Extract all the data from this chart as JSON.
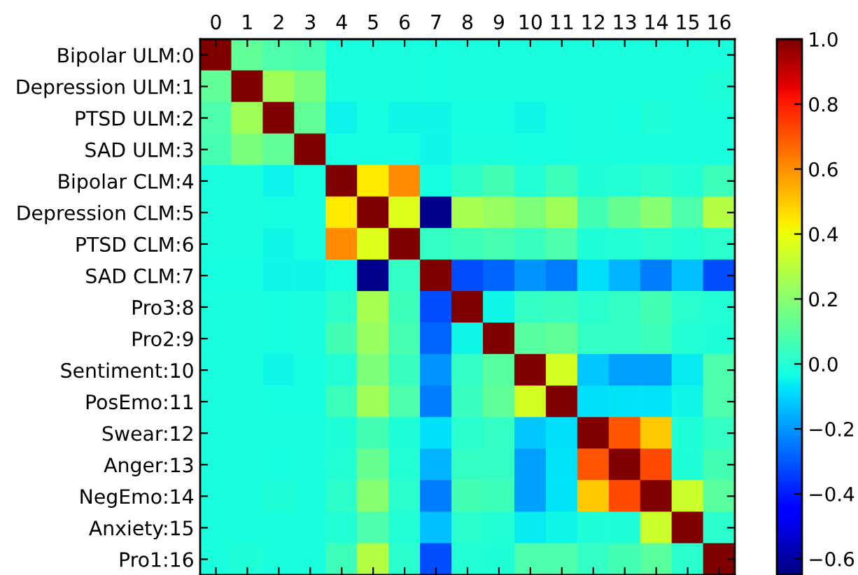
{
  "chart_data": {
    "type": "heatmap",
    "categories": [
      "0",
      "1",
      "2",
      "3",
      "4",
      "5",
      "6",
      "7",
      "8",
      "9",
      "10",
      "11",
      "12",
      "13",
      "14",
      "15",
      "16"
    ],
    "y_categories": [
      "Bipolar ULM:0",
      "Depression ULM:1",
      "PTSD ULM:2",
      "SAD ULM:3",
      "Bipolar CLM:4",
      "Depression CLM:5",
      "PTSD CLM:6",
      "SAD CLM:7",
      "Pro3:8",
      "Pro2:9",
      "Sentiment:10",
      "PosEmo:11",
      "Swear:12",
      "Anger:13",
      "NegEmo:14",
      "Anxiety:15",
      "Pro1:16"
    ],
    "cells": [
      [
        1.0,
        0.12,
        0.08,
        0.07,
        -0.02,
        -0.02,
        -0.02,
        -0.03,
        -0.02,
        -0.02,
        -0.02,
        -0.02,
        -0.02,
        -0.02,
        -0.02,
        -0.02,
        -0.02
      ],
      [
        0.12,
        1.0,
        0.25,
        0.17,
        -0.02,
        -0.02,
        -0.02,
        -0.03,
        -0.02,
        -0.02,
        -0.02,
        -0.02,
        -0.02,
        -0.02,
        -0.02,
        -0.02,
        -0.01
      ],
      [
        0.08,
        0.25,
        1.0,
        0.12,
        -0.05,
        -0.03,
        -0.04,
        -0.04,
        -0.03,
        -0.03,
        -0.04,
        -0.03,
        -0.02,
        -0.03,
        -0.01,
        -0.02,
        -0.02
      ],
      [
        0.07,
        0.17,
        0.12,
        1.0,
        -0.03,
        -0.03,
        -0.03,
        -0.04,
        -0.02,
        -0.02,
        -0.03,
        -0.03,
        -0.02,
        -0.02,
        -0.02,
        -0.02,
        -0.02
      ],
      [
        -0.02,
        -0.02,
        -0.05,
        -0.03,
        1.0,
        0.44,
        0.61,
        -0.03,
        0.02,
        0.06,
        0.0,
        0.05,
        -0.01,
        0.0,
        0.02,
        0.0,
        0.05
      ],
      [
        -0.02,
        -0.02,
        -0.03,
        -0.03,
        0.44,
        1.0,
        0.37,
        -0.63,
        0.26,
        0.23,
        0.18,
        0.25,
        0.06,
        0.13,
        0.2,
        0.08,
        0.29
      ],
      [
        -0.02,
        -0.02,
        -0.04,
        -0.03,
        0.61,
        0.37,
        1.0,
        0.03,
        0.05,
        0.07,
        0.04,
        0.08,
        -0.01,
        0.0,
        0.01,
        0.0,
        0.01
      ],
      [
        -0.03,
        -0.03,
        -0.04,
        -0.04,
        -0.03,
        -0.63,
        0.03,
        1.0,
        -0.32,
        -0.28,
        -0.2,
        -0.24,
        -0.08,
        -0.15,
        -0.24,
        -0.13,
        -0.32
      ],
      [
        -0.02,
        -0.02,
        -0.03,
        -0.02,
        0.02,
        0.26,
        0.05,
        -0.32,
        1.0,
        -0.04,
        0.03,
        0.04,
        0.01,
        0.03,
        0.06,
        0.01,
        0.0
      ],
      [
        -0.02,
        -0.02,
        -0.03,
        -0.02,
        0.06,
        0.23,
        0.07,
        -0.28,
        -0.04,
        1.0,
        0.1,
        0.12,
        0.03,
        0.03,
        0.05,
        0.0,
        -0.01
      ],
      [
        -0.02,
        -0.02,
        -0.04,
        -0.03,
        0.0,
        0.18,
        0.04,
        -0.2,
        0.03,
        0.1,
        1.0,
        0.35,
        -0.12,
        -0.18,
        -0.18,
        -0.06,
        0.08
      ],
      [
        -0.02,
        -0.02,
        -0.03,
        -0.03,
        0.05,
        0.25,
        0.08,
        -0.24,
        0.04,
        0.12,
        0.35,
        1.0,
        -0.08,
        -0.07,
        -0.07,
        -0.04,
        0.08
      ],
      [
        -0.02,
        -0.02,
        -0.02,
        -0.02,
        -0.01,
        0.06,
        -0.01,
        -0.08,
        0.01,
        0.03,
        -0.12,
        -0.08,
        1.0,
        0.7,
        0.5,
        -0.01,
        0.03
      ],
      [
        -0.02,
        -0.02,
        -0.03,
        -0.02,
        0.0,
        0.13,
        0.0,
        -0.15,
        0.03,
        0.03,
        -0.18,
        -0.07,
        0.7,
        1.0,
        0.72,
        -0.01,
        0.06
      ],
      [
        -0.02,
        -0.02,
        -0.01,
        -0.02,
        0.02,
        0.2,
        0.01,
        -0.24,
        0.06,
        0.05,
        -0.18,
        -0.07,
        0.5,
        0.72,
        1.0,
        0.33,
        0.11
      ],
      [
        -0.02,
        -0.02,
        -0.02,
        -0.02,
        0.0,
        0.08,
        0.0,
        -0.13,
        0.01,
        0.0,
        -0.06,
        -0.04,
        -0.01,
        -0.01,
        0.33,
        1.0,
        0.01
      ],
      [
        -0.02,
        -0.01,
        -0.02,
        -0.02,
        0.05,
        0.29,
        0.01,
        -0.32,
        0.0,
        -0.01,
        0.08,
        0.08,
        0.03,
        0.06,
        0.11,
        0.01,
        1.0
      ]
    ],
    "clim": [
      -0.65,
      1.0
    ],
    "cticks": [
      {
        "value": 1.0,
        "label": "1.0"
      },
      {
        "value": 0.8,
        "label": "0.8"
      },
      {
        "value": 0.6,
        "label": "0.6"
      },
      {
        "value": 0.4,
        "label": "0.4"
      },
      {
        "value": 0.2,
        "label": "0.2"
      },
      {
        "value": 0.0,
        "label": "0.0"
      },
      {
        "value": -0.2,
        "label": "−0.2"
      },
      {
        "value": -0.4,
        "label": "−0.4"
      },
      {
        "value": -0.6,
        "label": "−0.6"
      }
    ]
  }
}
